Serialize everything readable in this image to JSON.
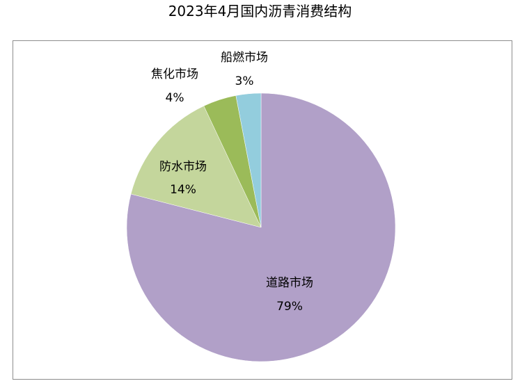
{
  "chart_data": {
    "type": "pie",
    "title": "2023年4月国内沥青消费结构",
    "categories": [
      "道路市场",
      "防水市场",
      "焦化市场",
      "船燃市场"
    ],
    "values": [
      79,
      14,
      4,
      3
    ],
    "value_labels": [
      "79%",
      "14%",
      "4%",
      "3%"
    ],
    "colors": [
      "#b1a0c8",
      "#c4d69c",
      "#9bbb59",
      "#93cddd"
    ],
    "start_angle_deg": 0,
    "direction": "clockwise",
    "legend": "none"
  }
}
